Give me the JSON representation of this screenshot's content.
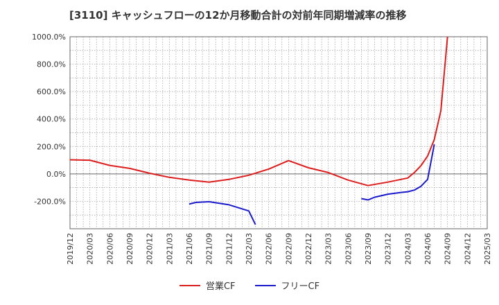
{
  "title": "[3110]  キャッシュフローの12か月移動合計の対前年同期増減率の推移",
  "chart_data": {
    "type": "line",
    "title": "[3110]  キャッシュフローの12か月移動合計の対前年同期増減率の推移",
    "xlabel": "",
    "ylabel": "",
    "ylim": [
      -400,
      1000
    ],
    "yticks": [
      -200,
      0,
      200,
      400,
      600,
      800,
      1000
    ],
    "ytick_labels": [
      "-200.0%",
      "0.0%",
      "200.0%",
      "400.0%",
      "600.0%",
      "800.0%",
      "1000.0%"
    ],
    "xlim": [
      "2019-12",
      "2025-03"
    ],
    "xticks": [
      "2019/12",
      "2020/03",
      "2020/06",
      "2020/09",
      "2020/12",
      "2021/03",
      "2021/06",
      "2021/09",
      "2021/12",
      "2022/03",
      "2022/06",
      "2022/09",
      "2022/12",
      "2023/03",
      "2023/06",
      "2023/09",
      "2023/12",
      "2024/03",
      "2024/06",
      "2024/09",
      "2024/12",
      "2025/03"
    ],
    "grid": true,
    "legend_position": "bottom",
    "series": [
      {
        "name": "営業CF",
        "color": "#dd1c1c",
        "points": [
          [
            "2019-12",
            103
          ],
          [
            "2020-03",
            100
          ],
          [
            "2020-06",
            62
          ],
          [
            "2020-09",
            40
          ],
          [
            "2020-12",
            5
          ],
          [
            "2021-03",
            -25
          ],
          [
            "2021-06",
            -45
          ],
          [
            "2021-09",
            -60
          ],
          [
            "2021-12",
            -40
          ],
          [
            "2022-03",
            -10
          ],
          [
            "2022-06",
            35
          ],
          [
            "2022-09",
            97
          ],
          [
            "2022-12",
            45
          ],
          [
            "2023-03",
            10
          ],
          [
            "2023-06",
            -45
          ],
          [
            "2023-09",
            -85
          ],
          [
            "2023-12",
            -60
          ],
          [
            "2024-03",
            -30
          ],
          [
            "2024-04",
            10
          ],
          [
            "2024-05",
            60
          ],
          [
            "2024-06",
            130
          ],
          [
            "2024-07",
            250
          ],
          [
            "2024-08",
            460
          ],
          [
            "2024-09",
            1000
          ]
        ]
      },
      {
        "name": "フリーCF",
        "color": "#1a1acc",
        "segments": [
          [
            [
              "2021-06",
              -220
            ],
            [
              "2021-07",
              -208
            ],
            [
              "2021-09",
              -203
            ],
            [
              "2021-12",
              -225
            ],
            [
              "2022-03",
              -270
            ],
            [
              "2022-04",
              -370
            ]
          ],
          [
            [
              "2023-08",
              -180
            ],
            [
              "2023-09",
              -190
            ],
            [
              "2023-10",
              -170
            ],
            [
              "2023-12",
              -148
            ],
            [
              "2024-02",
              -135
            ],
            [
              "2024-03",
              -130
            ],
            [
              "2024-04",
              -118
            ],
            [
              "2024-05",
              -90
            ],
            [
              "2024-06",
              -40
            ],
            [
              "2024-07",
              215
            ]
          ]
        ]
      }
    ]
  }
}
